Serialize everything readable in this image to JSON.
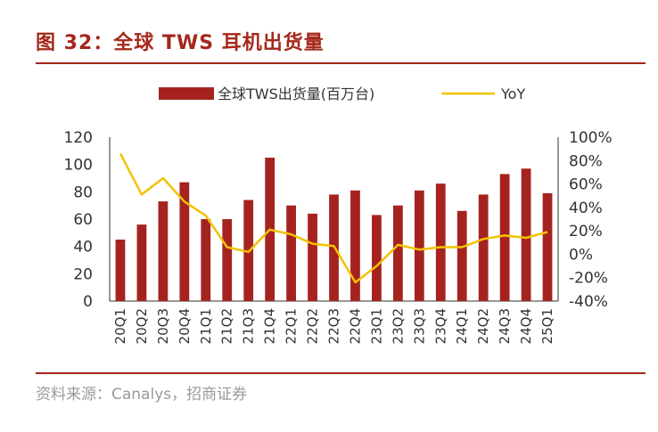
{
  "header": {
    "title": "图 32：全球 TWS 耳机出货量"
  },
  "footer": {
    "source": "资料来源：Canalys，招商证券"
  },
  "colors": {
    "bar": "#a5231f",
    "line": "#f2c200",
    "accent": "#a5281b"
  },
  "chart_data": {
    "type": "bar",
    "categories": [
      "20Q1",
      "20Q2",
      "20Q3",
      "20Q4",
      "21Q1",
      "21Q2",
      "21Q3",
      "21Q4",
      "22Q1",
      "22Q2",
      "22Q3",
      "22Q4",
      "23Q1",
      "23Q2",
      "23Q3",
      "23Q4",
      "24Q1",
      "24Q2",
      "24Q3",
      "24Q4",
      "25Q1"
    ],
    "series": [
      {
        "name": "全球TWS出货量(百万台)",
        "type": "bar",
        "axis": "left",
        "values": [
          45,
          56,
          73,
          87,
          60,
          60,
          74,
          105,
          70,
          64,
          78,
          81,
          63,
          70,
          81,
          86,
          66,
          78,
          93,
          97,
          79
        ]
      },
      {
        "name": "YoY",
        "type": "line",
        "axis": "right",
        "values": [
          86,
          51,
          65,
          45,
          33,
          6,
          2,
          21,
          17,
          9,
          7,
          -24,
          -10,
          8,
          4,
          6,
          6,
          13,
          16,
          14,
          19
        ]
      }
    ],
    "y_left": {
      "ylim": [
        0,
        120
      ],
      "ticks": [
        "0",
        "20",
        "40",
        "60",
        "80",
        "100",
        "120"
      ]
    },
    "y_right": {
      "ylim": [
        -40,
        100
      ],
      "ticks": [
        "-40%",
        "-20%",
        "0%",
        "20%",
        "40%",
        "60%",
        "80%",
        "100%"
      ]
    },
    "legend": "top",
    "grid": false
  }
}
